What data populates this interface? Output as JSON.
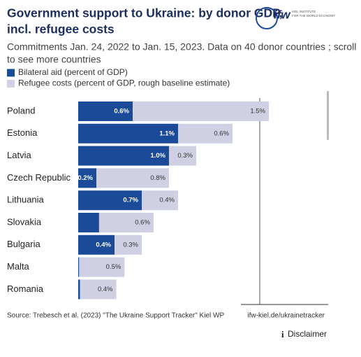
{
  "chart_data": {
    "type": "stacked_bar_horizontal",
    "title": [
      "Government support to Ukraine: by donor GDP,",
      "incl. refugee costs"
    ],
    "subtitle": [
      "Commitments Jan. 24, 2022 to Jan. 15, 2023. Data on 40 donor countries ; scroll",
      "to see more countries"
    ],
    "logo": "ifw",
    "logo_text": [
      "KIEL INSTITUTE",
      "FOR THE WORLD ECONOMY"
    ],
    "categories": [
      "Poland",
      "Estonia",
      "Latvia",
      "Czech Republic",
      "Lithuania",
      "Slovakia",
      "Bulgaria",
      "Malta",
      "Romania"
    ],
    "series": [
      {
        "name": "Bilateral aid (percent of GDP)",
        "color": "#1b4a98",
        "values": [
          0.6,
          1.1,
          1.0,
          0.2,
          0.7,
          0.23,
          0.4,
          0.01,
          0.02
        ],
        "value_labels": [
          "0.6%",
          "1.1%",
          "1.0%",
          "0.2%",
          "0.7%",
          null,
          "0.4%",
          null,
          null
        ]
      },
      {
        "name": "Refugee costs (percent of GDP, rough baseline estimate)",
        "color": "#cfd0e3",
        "values": [
          1.5,
          0.6,
          0.3,
          0.8,
          0.4,
          0.6,
          0.3,
          0.5,
          0.4
        ],
        "value_labels": [
          "1.5%",
          "0.6%",
          "0.3%",
          "0.8%",
          "0.4%",
          "0.6%",
          "0.3%",
          "0.5%",
          "0.4%"
        ]
      }
    ],
    "xlim": [
      0,
      2.75
    ],
    "xticks": [
      2
    ],
    "grid": true,
    "source": "Source: Trebesch et al. (2023) \"The Ukraine Support Tracker\" Kiel WP",
    "link": "ifw-kiel.de/ukrainetracker",
    "disclaimer": "Disclaimer"
  }
}
